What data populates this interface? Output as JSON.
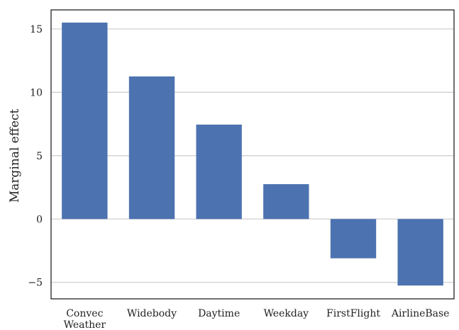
{
  "chart_data": {
    "type": "bar",
    "title": "",
    "xlabel": "",
    "ylabel": "Marginal effect",
    "categories": [
      "Convec\nWeather",
      "Widebody",
      "Daytime",
      "Weekday",
      "FirstFlight",
      "AirlineBase"
    ],
    "values": [
      15.5,
      11.25,
      7.45,
      2.75,
      -3.1,
      -5.25
    ],
    "ylim": [
      -6.3,
      16.5
    ],
    "yticks": [
      -5,
      0,
      5,
      10,
      15
    ],
    "ytick_labels": [
      "−5",
      "0",
      "5",
      "10",
      "15"
    ],
    "grid": "horizontal",
    "legend": "none",
    "colors": {
      "bar": "#4c72b0",
      "grid": "#d0d0d0",
      "frame": "#222222"
    }
  }
}
